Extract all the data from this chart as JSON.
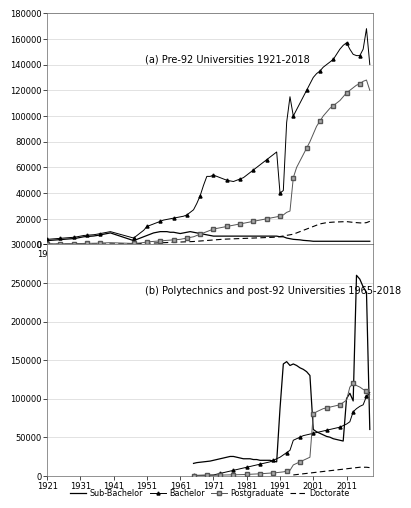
{
  "panel_a_title": "(a) Pre-92 Universities 1921-2018",
  "panel_b_title": "(b) Polytechnics and post-92 Universities 1965-2018",
  "panel_a_xlim": [
    1921,
    2019
  ],
  "panel_a_ylim": [
    0,
    180000
  ],
  "panel_a_yticks": [
    0,
    20000,
    40000,
    60000,
    80000,
    100000,
    120000,
    140000,
    160000,
    180000
  ],
  "panel_a_xticks": [
    1921,
    1931,
    1941,
    1951,
    1961,
    1971,
    1981,
    1991,
    2001,
    2011
  ],
  "panel_b_xlim": [
    1921,
    2019
  ],
  "panel_b_ylim": [
    0,
    300000
  ],
  "panel_b_yticks": [
    0,
    50000,
    100000,
    150000,
    200000,
    250000,
    300000
  ],
  "panel_b_xticks": [
    1921,
    1931,
    1941,
    1951,
    1961,
    1971,
    1981,
    1991,
    2001,
    2011
  ],
  "panel_a_sub_bachelor_x": [
    1921,
    1922,
    1923,
    1924,
    1925,
    1926,
    1927,
    1928,
    1929,
    1930,
    1931,
    1932,
    1933,
    1934,
    1935,
    1936,
    1937,
    1938,
    1939,
    1940,
    1947,
    1948,
    1949,
    1950,
    1951,
    1952,
    1953,
    1954,
    1955,
    1956,
    1957,
    1958,
    1959,
    1960,
    1961,
    1962,
    1963,
    1964,
    1965,
    1966,
    1967,
    1968,
    1969,
    1970,
    1971,
    1972,
    1973,
    1974,
    1975,
    1976,
    1977,
    1978,
    1979,
    1980,
    1981,
    1982,
    1983,
    1984,
    1985,
    1986,
    1987,
    1988,
    1989,
    1990,
    1991,
    1992,
    1993,
    1994,
    1995,
    1996,
    1997,
    1998,
    1999,
    2000,
    2001,
    2002,
    2003,
    2004,
    2005,
    2006,
    2007,
    2008,
    2009,
    2010,
    2011,
    2012,
    2013,
    2014,
    2015,
    2016,
    2017,
    2018
  ],
  "panel_a_sub_bachelor_y": [
    3000,
    3200,
    3400,
    3600,
    3800,
    4000,
    4200,
    4400,
    4600,
    5000,
    5500,
    6000,
    6200,
    6400,
    6600,
    7000,
    7500,
    8000,
    8500,
    9000,
    3000,
    4000,
    5000,
    6000,
    7000,
    8000,
    9000,
    9500,
    10000,
    10000,
    10000,
    9500,
    9500,
    9000,
    8500,
    9000,
    9500,
    10000,
    9500,
    9000,
    8500,
    8000,
    7500,
    7000,
    6500,
    6500,
    6500,
    6500,
    6500,
    6500,
    6500,
    6500,
    6500,
    6500,
    6500,
    6500,
    6500,
    6500,
    6500,
    6500,
    6500,
    6500,
    6500,
    6500,
    6000,
    6000,
    5000,
    4500,
    4000,
    3800,
    3600,
    3200,
    3000,
    2800,
    2500,
    2500,
    2500,
    2500,
    2500,
    2500,
    2500,
    2500,
    2500,
    2500,
    2500,
    2500,
    2500,
    2500,
    2500,
    2500,
    2500,
    2500
  ],
  "panel_a_bachelor_x": [
    1921,
    1922,
    1923,
    1924,
    1925,
    1926,
    1927,
    1928,
    1929,
    1930,
    1931,
    1932,
    1933,
    1934,
    1935,
    1936,
    1937,
    1938,
    1939,
    1940,
    1947,
    1948,
    1949,
    1950,
    1951,
    1952,
    1953,
    1954,
    1955,
    1956,
    1957,
    1958,
    1959,
    1960,
    1961,
    1962,
    1963,
    1964,
    1965,
    1966,
    1967,
    1968,
    1969,
    1970,
    1971,
    1972,
    1973,
    1974,
    1975,
    1976,
    1977,
    1978,
    1979,
    1980,
    1981,
    1982,
    1983,
    1984,
    1985,
    1986,
    1987,
    1988,
    1989,
    1990,
    1991,
    1992,
    1993,
    1994,
    1995,
    1996,
    1997,
    1998,
    1999,
    2000,
    2001,
    2002,
    2003,
    2004,
    2005,
    2006,
    2007,
    2008,
    2009,
    2010,
    2011,
    2012,
    2013,
    2014,
    2015,
    2016,
    2017,
    2018
  ],
  "panel_a_bachelor_y": [
    4000,
    4200,
    4400,
    4600,
    4800,
    5000,
    5200,
    5400,
    5600,
    6000,
    6500,
    7000,
    7200,
    7400,
    7600,
    8000,
    8500,
    9000,
    9500,
    10000,
    5000,
    7000,
    9000,
    11000,
    14000,
    15000,
    16000,
    17000,
    18000,
    19000,
    19500,
    20000,
    20500,
    21000,
    21500,
    22000,
    23000,
    25000,
    27000,
    32000,
    38000,
    46000,
    53000,
    53000,
    54000,
    53000,
    52000,
    51000,
    50000,
    49500,
    49000,
    50000,
    51000,
    52000,
    54000,
    56000,
    58000,
    60000,
    62000,
    64000,
    66000,
    68000,
    70000,
    72000,
    40000,
    42000,
    95000,
    115000,
    100000,
    105000,
    110000,
    115000,
    120000,
    125000,
    130000,
    133000,
    135000,
    138000,
    140000,
    142000,
    144000,
    148000,
    152000,
    155000,
    157000,
    152000,
    148000,
    147000,
    147000,
    152000,
    168000,
    140000
  ],
  "panel_a_postgrad_x": [
    1921,
    1922,
    1923,
    1924,
    1925,
    1926,
    1927,
    1928,
    1929,
    1930,
    1931,
    1932,
    1933,
    1934,
    1935,
    1936,
    1937,
    1938,
    1939,
    1940,
    1947,
    1948,
    1949,
    1950,
    1951,
    1952,
    1953,
    1954,
    1955,
    1956,
    1957,
    1958,
    1959,
    1960,
    1961,
    1962,
    1963,
    1964,
    1965,
    1966,
    1967,
    1968,
    1969,
    1970,
    1971,
    1972,
    1973,
    1974,
    1975,
    1976,
    1977,
    1978,
    1979,
    1980,
    1981,
    1982,
    1983,
    1984,
    1985,
    1986,
    1987,
    1988,
    1989,
    1990,
    1991,
    1992,
    1993,
    1994,
    1995,
    1996,
    1997,
    1998,
    1999,
    2000,
    2001,
    2002,
    2003,
    2004,
    2005,
    2006,
    2007,
    2008,
    2009,
    2010,
    2011,
    2012,
    2013,
    2014,
    2015,
    2016,
    2017,
    2018
  ],
  "panel_a_postgrad_y": [
    500,
    520,
    540,
    560,
    580,
    600,
    620,
    640,
    660,
    700,
    750,
    800,
    850,
    900,
    950,
    1000,
    1100,
    1200,
    1300,
    1400,
    800,
    1000,
    1200,
    1500,
    2000,
    2200,
    2400,
    2600,
    2800,
    3000,
    3200,
    3400,
    3600,
    3800,
    4000,
    4500,
    5000,
    5500,
    6000,
    7000,
    8000,
    9000,
    10000,
    11000,
    12000,
    12500,
    13000,
    13500,
    14000,
    14500,
    15000,
    15500,
    16000,
    16500,
    17000,
    17500,
    18000,
    18500,
    19000,
    19500,
    20000,
    20500,
    21000,
    21500,
    22000,
    23000,
    25000,
    26000,
    52000,
    60000,
    65000,
    70000,
    75000,
    80000,
    86000,
    92000,
    96000,
    100000,
    103000,
    106000,
    108000,
    110000,
    112000,
    115000,
    118000,
    120000,
    122000,
    124000,
    125000,
    127000,
    128000,
    120000
  ],
  "panel_a_doctorate_x": [
    1921,
    1922,
    1923,
    1924,
    1925,
    1926,
    1927,
    1928,
    1929,
    1930,
    1931,
    1932,
    1933,
    1934,
    1935,
    1936,
    1937,
    1938,
    1939,
    1940,
    1947,
    1948,
    1949,
    1950,
    1951,
    1952,
    1953,
    1954,
    1955,
    1956,
    1957,
    1958,
    1959,
    1960,
    1961,
    1962,
    1963,
    1964,
    1965,
    1966,
    1967,
    1968,
    1969,
    1970,
    1971,
    1972,
    1973,
    1974,
    1975,
    1976,
    1977,
    1978,
    1979,
    1980,
    1981,
    1982,
    1983,
    1984,
    1985,
    1986,
    1987,
    1988,
    1989,
    1990,
    1995,
    1996,
    1997,
    1998,
    1999,
    2000,
    2001,
    2002,
    2003,
    2004,
    2005,
    2006,
    2007,
    2008,
    2009,
    2010,
    2011,
    2012,
    2013,
    2014,
    2015,
    2016,
    2017,
    2018
  ],
  "panel_a_doctorate_y": [
    100,
    110,
    120,
    130,
    140,
    150,
    160,
    170,
    180,
    200,
    220,
    240,
    260,
    280,
    300,
    320,
    340,
    360,
    380,
    400,
    500,
    600,
    700,
    800,
    900,
    1000,
    1100,
    1200,
    1300,
    1400,
    1500,
    1600,
    1700,
    1800,
    1900,
    2000,
    2100,
    2200,
    2300,
    2500,
    2700,
    2900,
    3100,
    3300,
    3500,
    3700,
    3900,
    4100,
    4200,
    4300,
    4400,
    4500,
    4600,
    4700,
    4800,
    4900,
    5000,
    5100,
    5200,
    5300,
    5400,
    5500,
    5600,
    5700,
    8000,
    9000,
    10000,
    11000,
    12000,
    13000,
    14000,
    15000,
    16000,
    16500,
    17000,
    17200,
    17400,
    17500,
    17600,
    17700,
    17800,
    17500,
    17200,
    17000,
    16800,
    16700,
    17000,
    18000
  ],
  "panel_b_sub_bachelor_x": [
    1965,
    1966,
    1967,
    1968,
    1969,
    1970,
    1971,
    1972,
    1973,
    1974,
    1975,
    1976,
    1977,
    1978,
    1979,
    1980,
    1981,
    1982,
    1983,
    1984,
    1985,
    1986,
    1987,
    1988,
    1989,
    1990,
    1991,
    1992,
    1993,
    1994,
    1995,
    1996,
    1997,
    1998,
    1999,
    2000,
    2001,
    2002,
    2003,
    2004,
    2005,
    2006,
    2007,
    2008,
    2009,
    2010,
    2011,
    2012,
    2013,
    2014,
    2015,
    2016,
    2017,
    2018
  ],
  "panel_b_sub_bachelor_y": [
    16000,
    17000,
    17500,
    18000,
    18500,
    19000,
    20000,
    21000,
    22000,
    23000,
    24000,
    25000,
    25000,
    24000,
    23000,
    22000,
    22000,
    22000,
    21000,
    21000,
    20000,
    20000,
    20000,
    20000,
    19000,
    18000,
    87000,
    145000,
    148000,
    143000,
    145000,
    143000,
    140000,
    138000,
    135000,
    130000,
    60000,
    57000,
    55000,
    53000,
    51000,
    50000,
    48000,
    47000,
    46000,
    45000,
    100000,
    107000,
    97000,
    260000,
    255000,
    245000,
    238000,
    60000
  ],
  "panel_b_bachelor_x": [
    1965,
    1966,
    1967,
    1968,
    1969,
    1970,
    1971,
    1972,
    1973,
    1974,
    1975,
    1976,
    1977,
    1978,
    1979,
    1980,
    1981,
    1982,
    1983,
    1984,
    1985,
    1986,
    1987,
    1988,
    1989,
    1990,
    1991,
    1992,
    1993,
    1994,
    1995,
    1996,
    1997,
    1998,
    1999,
    2000,
    2001,
    2002,
    2003,
    2004,
    2005,
    2006,
    2007,
    2008,
    2009,
    2010,
    2011,
    2012,
    2013,
    2014,
    2015,
    2016,
    2017,
    2018
  ],
  "panel_b_bachelor_y": [
    400,
    500,
    600,
    700,
    800,
    900,
    1000,
    2000,
    3000,
    4000,
    5000,
    6000,
    7000,
    8000,
    9000,
    10000,
    11000,
    12000,
    13000,
    14000,
    15000,
    16000,
    17000,
    18000,
    20000,
    22000,
    24000,
    27000,
    30000,
    33000,
    46000,
    48000,
    50000,
    52000,
    53000,
    54000,
    55000,
    56000,
    57000,
    58000,
    59000,
    60000,
    61000,
    62000,
    63000,
    65000,
    67000,
    70000,
    83000,
    87000,
    90000,
    92000,
    103000,
    108000
  ],
  "panel_b_postgrad_x": [
    1965,
    1966,
    1967,
    1968,
    1969,
    1970,
    1971,
    1972,
    1973,
    1974,
    1975,
    1976,
    1977,
    1978,
    1979,
    1980,
    1981,
    1982,
    1983,
    1984,
    1985,
    1986,
    1987,
    1988,
    1989,
    1990,
    1991,
    1992,
    1993,
    1994,
    1995,
    1996,
    1997,
    1998,
    1999,
    2000,
    2001,
    2002,
    2003,
    2004,
    2005,
    2006,
    2007,
    2008,
    2009,
    2010,
    2011,
    2012,
    2013,
    2014,
    2015,
    2016,
    2017,
    2018
  ],
  "panel_b_postgrad_y": [
    200,
    250,
    300,
    350,
    400,
    500,
    600,
    700,
    800,
    900,
    1000,
    1100,
    1200,
    1300,
    1400,
    1500,
    1700,
    1900,
    2100,
    2300,
    2500,
    2800,
    3100,
    3400,
    3700,
    4000,
    4500,
    5000,
    6000,
    7000,
    14000,
    16000,
    18000,
    20000,
    22000,
    24000,
    80000,
    83000,
    85000,
    87000,
    88000,
    89000,
    90000,
    91000,
    92000,
    95000,
    98000,
    115000,
    120000,
    117000,
    115000,
    112000,
    110000,
    105000
  ],
  "panel_b_doctorate_x": [
    1995,
    1996,
    1997,
    1998,
    1999,
    2000,
    2001,
    2002,
    2003,
    2004,
    2005,
    2006,
    2007,
    2008,
    2009,
    2010,
    2011,
    2012,
    2013,
    2014,
    2015,
    2016,
    2017,
    2018
  ],
  "panel_b_doctorate_y": [
    1000,
    1500,
    2000,
    2500,
    3000,
    3500,
    4000,
    4500,
    5000,
    5500,
    6000,
    6500,
    7000,
    7500,
    8000,
    8500,
    9000,
    9500,
    10000,
    10500,
    11000,
    11000,
    11000,
    10500
  ]
}
